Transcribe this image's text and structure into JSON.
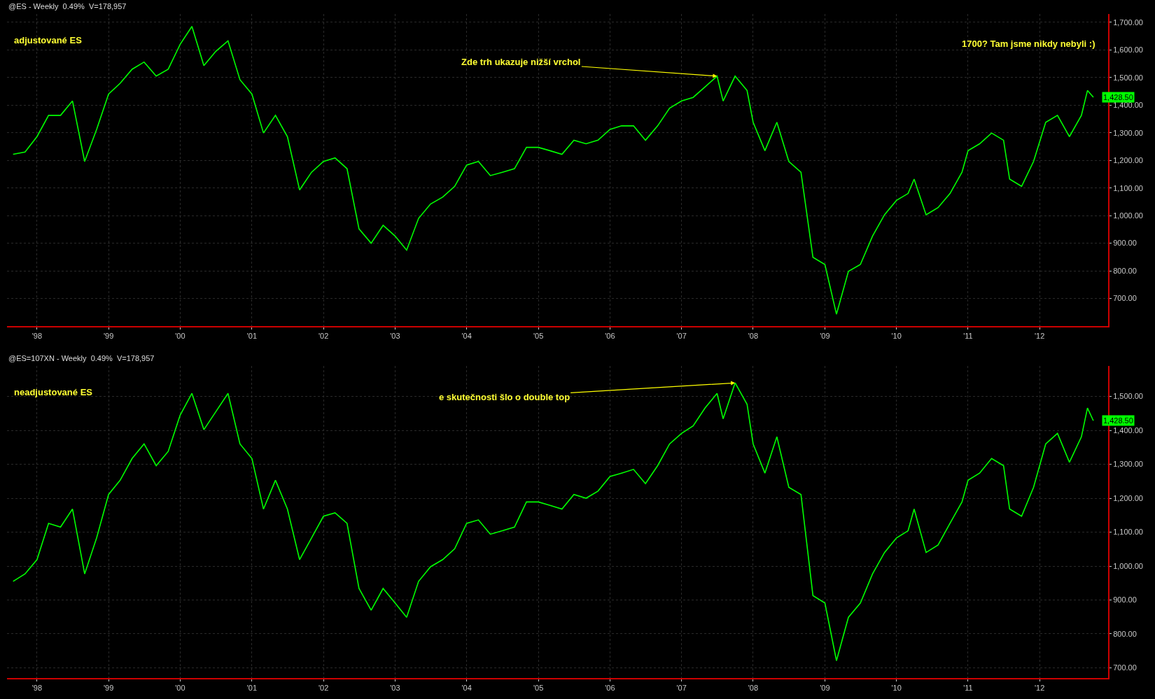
{
  "chart_data": [
    {
      "type": "line",
      "title": "adjustované ES",
      "subtitle": "@ES - Weekly  0.49%  V=178,957",
      "grid": true,
      "marker": "none",
      "line_style": "solid",
      "xlim": [
        "1997-08-01",
        "2012-12-15"
      ],
      "xticks": [
        {
          "value": "1998-01-01",
          "label": "'98"
        },
        {
          "value": "1999-01-01",
          "label": "'99"
        },
        {
          "value": "2000-01-01",
          "label": "'00"
        },
        {
          "value": "2001-01-01",
          "label": "'01"
        },
        {
          "value": "2002-01-01",
          "label": "'02"
        },
        {
          "value": "2003-01-01",
          "label": "'03"
        },
        {
          "value": "2004-01-01",
          "label": "'04"
        },
        {
          "value": "2005-01-01",
          "label": "'05"
        },
        {
          "value": "2006-01-01",
          "label": "'06"
        },
        {
          "value": "2007-01-01",
          "label": "'07"
        },
        {
          "value": "2008-01-01",
          "label": "'08"
        },
        {
          "value": "2009-01-01",
          "label": "'09"
        },
        {
          "value": "2010-01-01",
          "label": "'10"
        },
        {
          "value": "2011-01-01",
          "label": "'11"
        },
        {
          "value": "2012-01-01",
          "label": "'12"
        }
      ],
      "ylim": [
        600,
        1730
      ],
      "yticks": [
        {
          "value": 700,
          "label": "700.00"
        },
        {
          "value": 800,
          "label": "800.00"
        },
        {
          "value": 900,
          "label": "900.00"
        },
        {
          "value": 1000,
          "label": "1,000.00"
        },
        {
          "value": 1100,
          "label": "1,100.00"
        },
        {
          "value": 1200,
          "label": "1,200.00"
        },
        {
          "value": 1300,
          "label": "1,300.00"
        },
        {
          "value": 1400,
          "label": "1,400.00"
        },
        {
          "value": 1500,
          "label": "1,500.00"
        },
        {
          "value": 1600,
          "label": "1,600.00"
        },
        {
          "value": 1700,
          "label": "1,700.00"
        }
      ],
      "x": [
        "1997-09",
        "1997-11",
        "1998-01",
        "1998-03",
        "1998-05",
        "1998-07",
        "1998-09",
        "1998-11",
        "1999-01",
        "1999-03",
        "1999-05",
        "1999-07",
        "1999-09",
        "1999-11",
        "2000-01",
        "2000-03",
        "2000-05",
        "2000-07",
        "2000-09",
        "2000-11",
        "2001-01",
        "2001-03",
        "2001-05",
        "2001-07",
        "2001-09",
        "2001-11",
        "2002-01",
        "2002-03",
        "2002-05",
        "2002-07",
        "2002-09",
        "2002-11",
        "2003-01",
        "2003-03",
        "2003-05",
        "2003-07",
        "2003-09",
        "2003-11",
        "2004-01",
        "2004-03",
        "2004-05",
        "2004-07",
        "2004-09",
        "2004-11",
        "2005-01",
        "2005-03",
        "2005-05",
        "2005-07",
        "2005-09",
        "2005-11",
        "2006-01",
        "2006-03",
        "2006-05",
        "2006-07",
        "2006-09",
        "2006-11",
        "2007-01",
        "2007-03",
        "2007-05",
        "2007-07",
        "2007-08",
        "2007-10",
        "2007-12",
        "2008-01",
        "2008-03",
        "2008-05",
        "2008-07",
        "2008-09",
        "2008-11",
        "2009-01",
        "2009-03",
        "2009-05",
        "2009-07",
        "2009-09",
        "2009-11",
        "2010-01",
        "2010-03",
        "2010-04",
        "2010-06",
        "2010-08",
        "2010-10",
        "2010-12",
        "2011-01",
        "2011-03",
        "2011-05",
        "2011-07",
        "2011-08",
        "2011-10",
        "2011-12",
        "2012-02",
        "2012-04",
        "2012-06",
        "2012-08",
        "2012-09",
        "2012-10"
      ],
      "series": [
        {
          "color": "#00ff00",
          "values": [
            1222,
            1230,
            1286,
            1363,
            1363,
            1415,
            1196,
            1312,
            1440,
            1479,
            1530,
            1556,
            1505,
            1530,
            1620,
            1685,
            1543,
            1595,
            1633,
            1492,
            1440,
            1299,
            1363,
            1286,
            1093,
            1157,
            1196,
            1209,
            1170,
            952,
            900,
            965,
            926,
            875,
            990,
            1042,
            1067,
            1106,
            1183,
            1196,
            1145,
            1157,
            1170,
            1247,
            1247,
            1235,
            1222,
            1273,
            1260,
            1273,
            1312,
            1325,
            1325,
            1273,
            1325,
            1389,
            1415,
            1428,
            1466,
            1505,
            1415,
            1505,
            1453,
            1338,
            1235,
            1338,
            1196,
            1157,
            849,
            823,
            643,
            798,
            823,
            926,
            1003,
            1055,
            1080,
            1132,
            1003,
            1029,
            1080,
            1157,
            1235,
            1260,
            1299,
            1273,
            1132,
            1106,
            1196,
            1338,
            1363,
            1286,
            1363,
            1453,
            1428.5
          ]
        }
      ],
      "annotations": [
        {
          "text": "Zde trh ukazuje nižší vrchol",
          "x": "2007-07",
          "y": 1505
        },
        "1700? Tam jsme nikdy nebyli :)",
        {
          "text": "1,428.50",
          "x": "2012-10",
          "y": 1428.5
        }
      ]
    },
    {
      "type": "line",
      "title": "neadjustované ES",
      "subtitle": "@ES=107XN - Weekly  0.49%  V=178,957",
      "grid": true,
      "marker": "none",
      "line_style": "solid",
      "xlim": [
        "1997-08-01",
        "2012-12-15"
      ],
      "xticks": [
        {
          "value": "1998-01-01",
          "label": "'98"
        },
        {
          "value": "1999-01-01",
          "label": "'99"
        },
        {
          "value": "2000-01-01",
          "label": "'00"
        },
        {
          "value": "2001-01-01",
          "label": "'01"
        },
        {
          "value": "2002-01-01",
          "label": "'02"
        },
        {
          "value": "2003-01-01",
          "label": "'03"
        },
        {
          "value": "2004-01-01",
          "label": "'04"
        },
        {
          "value": "2005-01-01",
          "label": "'05"
        },
        {
          "value": "2006-01-01",
          "label": "'06"
        },
        {
          "value": "2007-01-01",
          "label": "'07"
        },
        {
          "value": "2008-01-01",
          "label": "'08"
        },
        {
          "value": "2009-01-01",
          "label": "'09"
        },
        {
          "value": "2010-01-01",
          "label": "'10"
        },
        {
          "value": "2011-01-01",
          "label": "'11"
        },
        {
          "value": "2012-01-01",
          "label": "'12"
        }
      ],
      "ylim": [
        670,
        1590
      ],
      "yticks": [
        {
          "value": 700,
          "label": "700.00"
        },
        {
          "value": 800,
          "label": "800.00"
        },
        {
          "value": 900,
          "label": "900.00"
        },
        {
          "value": 1000,
          "label": "1,000.00"
        },
        {
          "value": 1100,
          "label": "1,100.00"
        },
        {
          "value": 1200,
          "label": "1,200.00"
        },
        {
          "value": 1300,
          "label": "1,300.00"
        },
        {
          "value": 1400,
          "label": "1,400.00"
        },
        {
          "value": 1500,
          "label": "1,500.00"
        }
      ],
      "x": [
        "1997-09",
        "1997-11",
        "1998-01",
        "1998-03",
        "1998-05",
        "1998-07",
        "1998-09",
        "1998-11",
        "1999-01",
        "1999-03",
        "1999-05",
        "1999-07",
        "1999-09",
        "1999-11",
        "2000-01",
        "2000-03",
        "2000-05",
        "2000-07",
        "2000-09",
        "2000-11",
        "2001-01",
        "2001-03",
        "2001-05",
        "2001-07",
        "2001-09",
        "2001-11",
        "2002-01",
        "2002-03",
        "2002-05",
        "2002-07",
        "2002-09",
        "2002-11",
        "2003-01",
        "2003-03",
        "2003-05",
        "2003-07",
        "2003-09",
        "2003-11",
        "2004-01",
        "2004-03",
        "2004-05",
        "2004-07",
        "2004-09",
        "2004-11",
        "2005-01",
        "2005-03",
        "2005-05",
        "2005-07",
        "2005-09",
        "2005-11",
        "2006-01",
        "2006-03",
        "2006-05",
        "2006-07",
        "2006-09",
        "2006-11",
        "2007-01",
        "2007-03",
        "2007-05",
        "2007-07",
        "2007-08",
        "2007-10",
        "2007-12",
        "2008-01",
        "2008-03",
        "2008-05",
        "2008-07",
        "2008-09",
        "2008-11",
        "2009-01",
        "2009-03",
        "2009-05",
        "2009-07",
        "2009-09",
        "2009-11",
        "2010-01",
        "2010-03",
        "2010-04",
        "2010-06",
        "2010-08",
        "2010-10",
        "2010-12",
        "2011-01",
        "2011-03",
        "2011-05",
        "2011-07",
        "2011-08",
        "2011-10",
        "2011-12",
        "2012-02",
        "2012-04",
        "2012-06",
        "2012-08",
        "2012-09",
        "2012-10"
      ],
      "series": [
        {
          "color": "#00ff00",
          "values": [
            955,
            977,
            1019,
            1126,
            1115,
            1168,
            977,
            1083,
            1211,
            1253,
            1317,
            1360,
            1296,
            1338,
            1445,
            1509,
            1402,
            1455,
            1509,
            1360,
            1317,
            1168,
            1253,
            1168,
            1019,
            1083,
            1147,
            1157,
            1126,
            934,
            870,
            934,
            891,
            849,
            955,
            998,
            1019,
            1051,
            1126,
            1136,
            1094,
            1104,
            1115,
            1189,
            1189,
            1179,
            1168,
            1211,
            1200,
            1221,
            1264,
            1274,
            1285,
            1243,
            1296,
            1360,
            1391,
            1413,
            1466,
            1509,
            1434,
            1540,
            1477,
            1360,
            1274,
            1381,
            1232,
            1211,
            913,
            891,
            721,
            849,
            891,
            977,
            1040,
            1083,
            1104,
            1168,
            1040,
            1062,
            1126,
            1189,
            1253,
            1274,
            1317,
            1296,
            1168,
            1147,
            1232,
            1360,
            1391,
            1306,
            1381,
            1466,
            1428.5
          ]
        }
      ],
      "annotations": [
        {
          "text": "e skutečnosti šlo o double top",
          "x": "2007-10",
          "y": 1540
        },
        {
          "text": "1,428.50",
          "x": "2012-10",
          "y": 1428.5
        }
      ]
    }
  ]
}
